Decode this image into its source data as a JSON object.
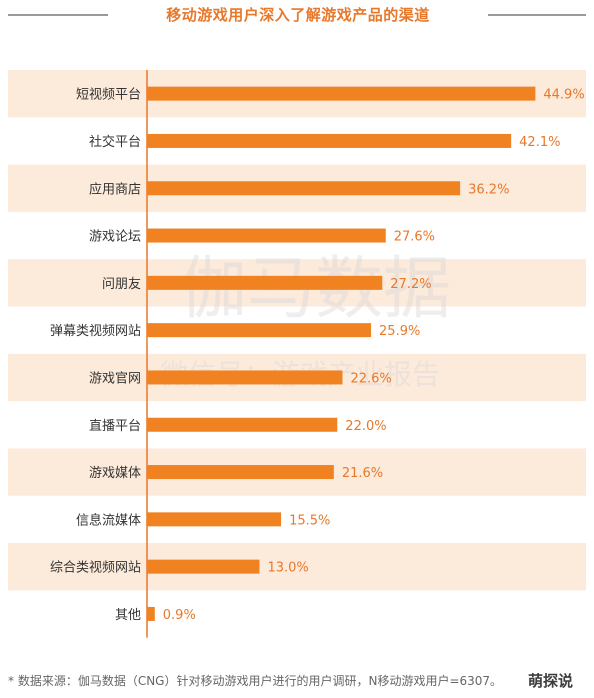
{
  "title": "移动游戏用户深入了解游戏产品的渠道",
  "footer": "*  数据来源：伽马数据（CNG）针对移动游戏用户进行的用户调研，N移动游戏用户=6307。",
  "corner_logo": "萌探说",
  "watermark": {
    "line1": "伽马数据",
    "line2": "微信号：游戏产业报告"
  },
  "colors": {
    "bar": "#F08221",
    "label": "#E8782A",
    "stripe": "#FCEADB",
    "axis": "#E8782A",
    "title": "#E8782A"
  },
  "chart_data": {
    "type": "bar",
    "orientation": "horizontal",
    "categories": [
      "短视频平台",
      "社交平台",
      "应用商店",
      "游戏论坛",
      "问朋友",
      "弹幕类视频网站",
      "游戏官网",
      "直播平台",
      "游戏媒体",
      "信息流媒体",
      "综合类视频网站",
      "其他"
    ],
    "values": [
      44.9,
      42.1,
      36.2,
      27.6,
      27.2,
      25.9,
      22.6,
      22.0,
      21.6,
      15.5,
      13.0,
      0.9
    ],
    "value_labels": [
      "44.9%",
      "42.1%",
      "36.2%",
      "27.6%",
      "27.2%",
      "25.9%",
      "22.6%",
      "22.0%",
      "21.6%",
      "15.5%",
      "13.0%",
      "0.9%"
    ],
    "unit": "%",
    "xlim": [
      0,
      50
    ],
    "title": "移动游戏用户深入了解游戏产品的渠道",
    "grid": false,
    "legend": "none"
  }
}
